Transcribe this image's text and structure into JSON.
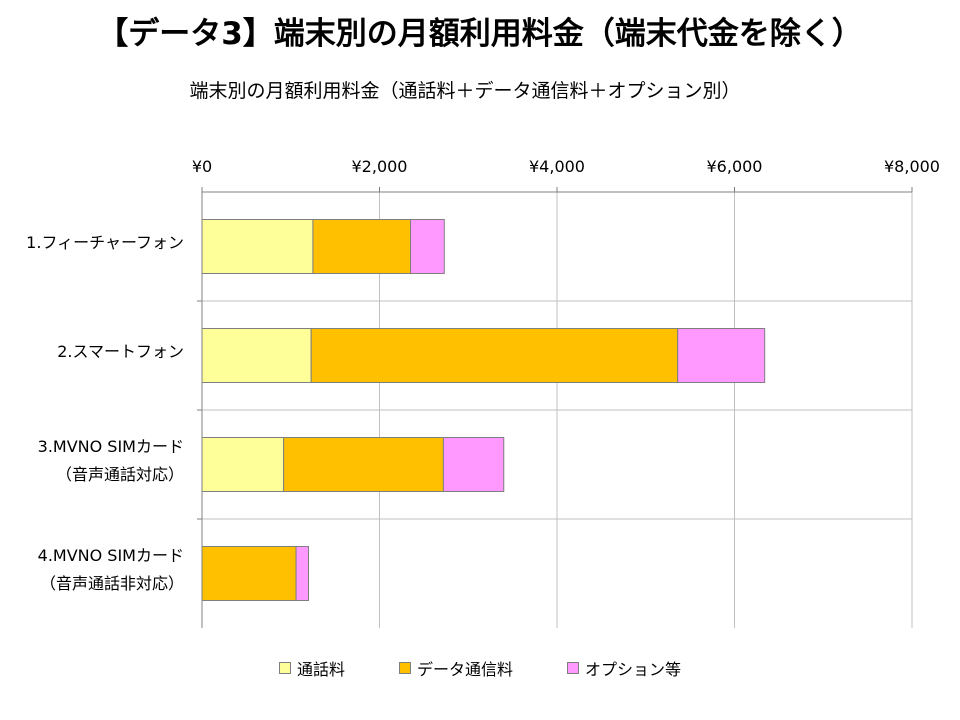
{
  "page": {
    "title": "【データ3】端末別の月額利用料金（端末代金を除く）"
  },
  "colors": {
    "call": "#ffff99",
    "data": "#ffc000",
    "option": "#ff99ff",
    "grid": "#c0c0c0",
    "bar_border": "#7f7f7f"
  },
  "chart_data": {
    "type": "bar",
    "orientation": "horizontal",
    "stacked": true,
    "title": "端末別の月額利用料金（通話料＋データ通信料＋オプション別）",
    "xlim": [
      0,
      8000
    ],
    "xticks": [
      "¥0",
      "¥2,000",
      "¥4,000",
      "¥6,000",
      "¥8,000"
    ],
    "xtick_values": [
      0,
      2000,
      4000,
      6000,
      8000
    ],
    "xaxis_position": "top",
    "grid": true,
    "legend_position": "bottom",
    "categories": [
      [
        "1.フィーチャーフォン"
      ],
      [
        "2.スマートフォン"
      ],
      [
        "3.MVNO SIMカード",
        "（音声通話対応）"
      ],
      [
        "4.MVNO SIMカード",
        "（音声通話非対応）"
      ]
    ],
    "series": [
      {
        "name": "通話料",
        "key": "call",
        "values": [
          1250,
          1230,
          920,
          0
        ]
      },
      {
        "name": "データ通信料",
        "key": "data",
        "values": [
          1100,
          4130,
          1800,
          1060
        ]
      },
      {
        "name": "オプション等",
        "key": "option",
        "values": [
          380,
          980,
          680,
          140
        ]
      }
    ]
  }
}
